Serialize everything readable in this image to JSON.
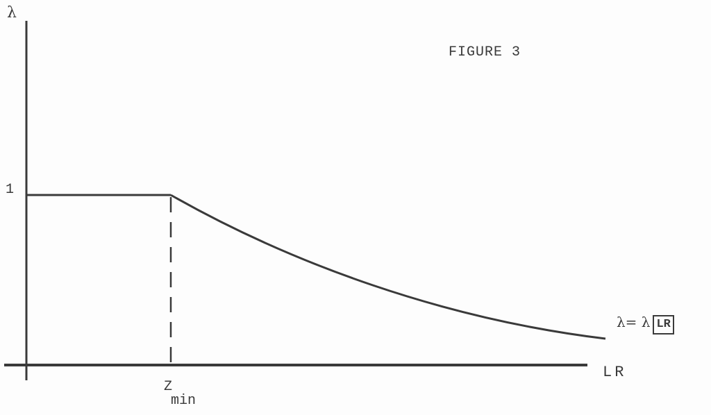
{
  "figure": {
    "title": "FIGURE 3",
    "y_axis_label": "λ",
    "y_tick_label": "1",
    "x_axis_label": "LR",
    "zmin_main": "Z",
    "zmin_sub": "min",
    "curve_label_prefix": "λ= λ",
    "curve_label_arg": "LR"
  },
  "style": {
    "ink_color": "#3a3a3a",
    "background": "#fdfdfd"
  }
}
